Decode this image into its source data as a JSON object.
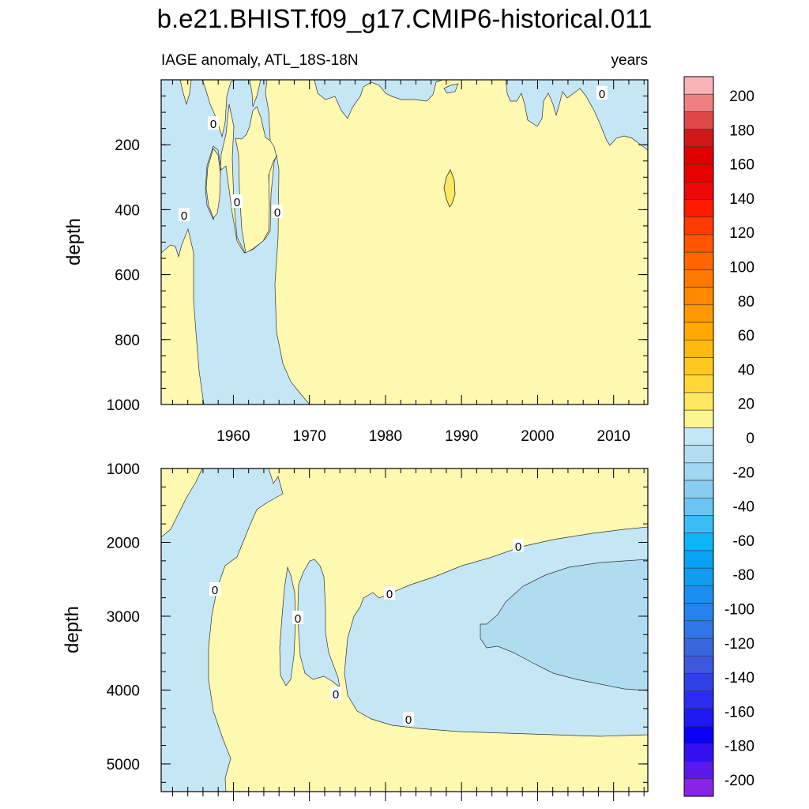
{
  "chart_data": {
    "type": "contour",
    "title": "b.e21.BHIST.f09_g17.CMIP6-historical.011",
    "left_subtitle": "IAGE anomaly, ATL_18S-18N",
    "right_subtitle": "years",
    "x_ticks": [
      "1960",
      "1970",
      "1980",
      "1990",
      "2000",
      "2010"
    ],
    "xlim": [
      1950.5,
      2014.5
    ],
    "panels": [
      {
        "name": "upper",
        "ylabel": "depth",
        "ylim": [
          0,
          1000
        ],
        "y_ticks": [
          "200",
          "400",
          "600",
          "800",
          "1000"
        ],
        "contour_labels": [
          "0",
          "0",
          "0",
          "0",
          "0"
        ]
      },
      {
        "name": "lower",
        "ylabel": "depth",
        "ylim": [
          1000,
          5375
        ],
        "y_ticks": [
          "1000",
          "2000",
          "3000",
          "4000",
          "5000"
        ],
        "contour_labels": [
          "0",
          "0",
          "0",
          "0",
          "0",
          "0"
        ]
      }
    ],
    "colorbar": {
      "labels": [
        "200",
        "180",
        "160",
        "140",
        "120",
        "100",
        "80",
        "60",
        "40",
        "20",
        "0",
        "-20",
        "-40",
        "-60",
        "-80",
        "-100",
        "-120",
        "-140",
        "-160",
        "-180",
        "-200"
      ],
      "colors": [
        "#f8b3b8",
        "#f08080",
        "#e04848",
        "#d01818",
        "#e00000",
        "#e80000",
        "#f00808",
        "#ff1a00",
        "#ff3a00",
        "#ff5400",
        "#ff6600",
        "#ff7800",
        "#ff8800",
        "#ff9800",
        "#ffa800",
        "#ffb810",
        "#ffc820",
        "#ffd838",
        "#ffe860",
        "#fff590",
        "#c5e6f5",
        "#b3def2",
        "#a0d6ef",
        "#88cdf0",
        "#6cc4f2",
        "#3abdf5",
        "#0cb4f8",
        "#08a4f4",
        "#129cf0",
        "#1c8ef0",
        "#2682ee",
        "#3076e8",
        "#3868e0",
        "#3c58dc",
        "#3040e6",
        "#2a2cf0",
        "#1e18f4",
        "#0a00f4",
        "#3410f0",
        "#5a18ec",
        "#8824e6"
      ],
      "fill_colors": {
        "zero_to_20": "#fff8b0",
        "minus20_to_0": "#c5e6f5",
        "minus40_to_minus20": "#b0dcf0"
      }
    }
  }
}
